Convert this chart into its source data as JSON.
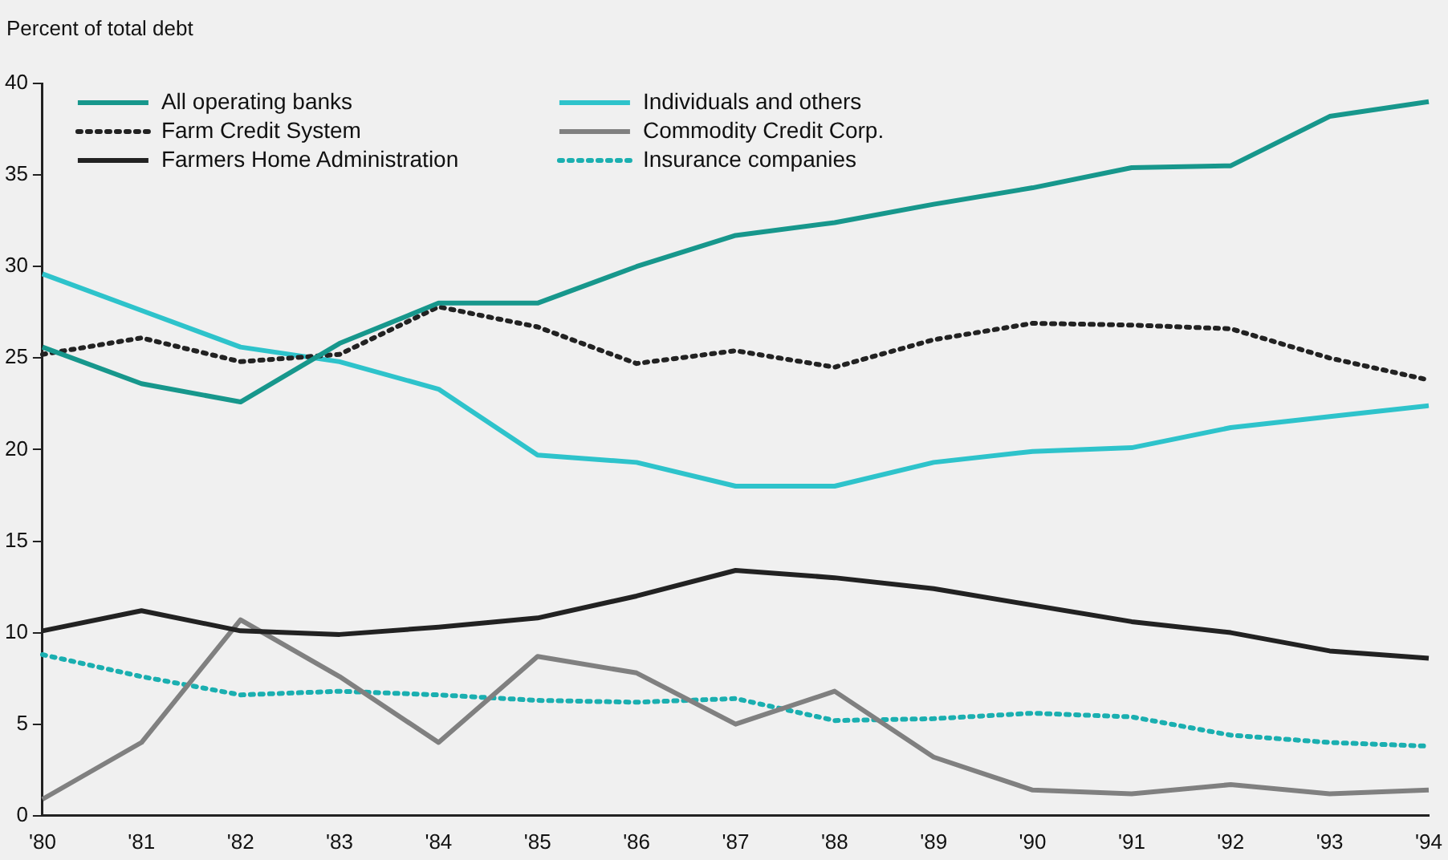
{
  "chart_data": {
    "type": "line",
    "ylabel": "Percent of total debt",
    "categories": [
      "'80",
      "'81",
      "'82",
      "'83",
      "'84",
      "'85",
      "'86",
      "'87",
      "'88",
      "'89",
      "'90",
      "'91",
      "'92",
      "'93",
      "'94"
    ],
    "ylim": [
      0,
      40
    ],
    "yticks": [
      0,
      5,
      10,
      15,
      20,
      25,
      30,
      35,
      40
    ],
    "grid": false,
    "legend": "top left",
    "marker": "none",
    "series": [
      {
        "name": "All operating banks",
        "color": "#17978c",
        "line_style": "solid",
        "values": [
          25.6,
          23.6,
          22.6,
          25.8,
          28.0,
          28.0,
          30.0,
          31.7,
          32.4,
          33.4,
          34.3,
          35.4,
          35.5,
          38.2,
          39.0
        ]
      },
      {
        "name": "Farm Credit System",
        "color": "#222222",
        "line_style": "dotted",
        "values": [
          25.2,
          26.1,
          24.8,
          25.2,
          27.8,
          26.7,
          24.7,
          25.4,
          24.5,
          26.0,
          26.9,
          26.8,
          26.6,
          25.0,
          23.8
        ]
      },
      {
        "name": "Farmers Home Administration",
        "color": "#222222",
        "line_style": "solid",
        "values": [
          10.1,
          11.2,
          10.1,
          9.9,
          10.3,
          10.8,
          12.0,
          13.4,
          13.0,
          12.4,
          11.5,
          10.6,
          10.0,
          9.0,
          8.6
        ]
      },
      {
        "name": "Individuals and others",
        "color": "#2ec3cb",
        "line_style": "solid",
        "values": [
          29.6,
          27.6,
          25.6,
          24.8,
          23.3,
          19.7,
          19.3,
          18.0,
          18.0,
          19.3,
          19.9,
          20.1,
          21.2,
          21.8,
          22.4
        ]
      },
      {
        "name": "Commodity Credit Corp.",
        "color": "#808080",
        "line_style": "solid",
        "values": [
          0.9,
          4.0,
          10.7,
          7.6,
          4.0,
          8.7,
          7.8,
          5.0,
          6.8,
          3.2,
          1.4,
          1.2,
          1.7,
          1.2,
          1.4
        ]
      },
      {
        "name": "Insurance companies",
        "color": "#1aafb0",
        "line_style": "dotted",
        "values": [
          8.8,
          7.6,
          6.6,
          6.8,
          6.6,
          6.3,
          6.2,
          6.4,
          5.2,
          5.3,
          5.6,
          5.4,
          4.4,
          4.0,
          3.8
        ]
      }
    ]
  }
}
